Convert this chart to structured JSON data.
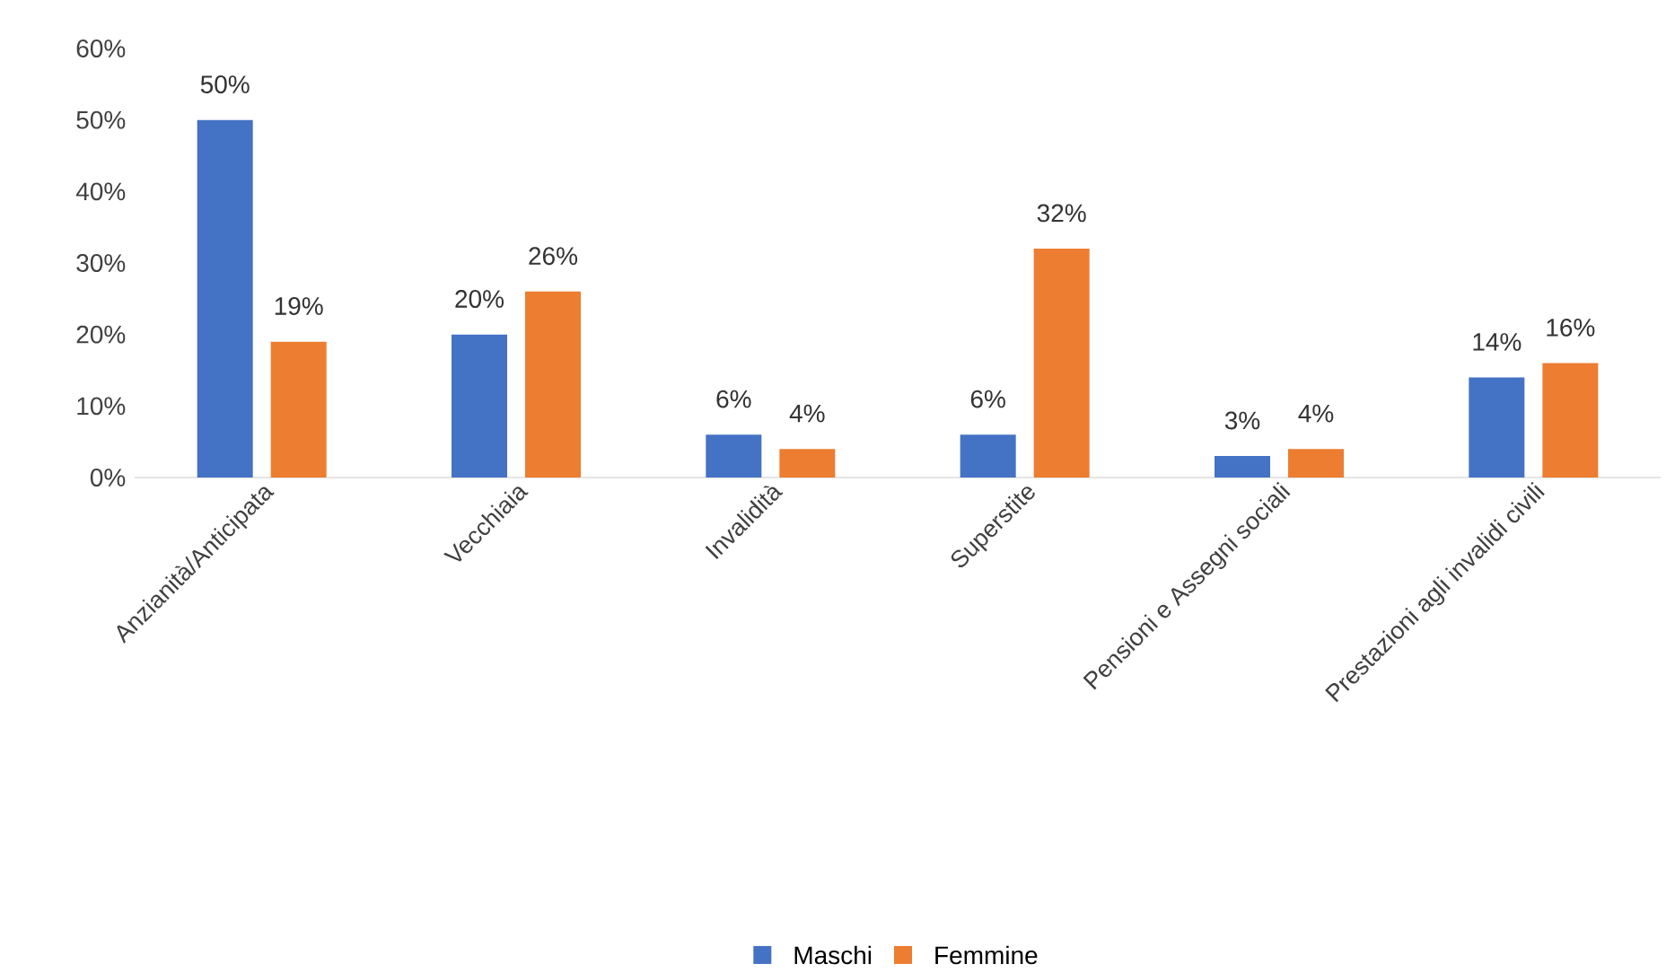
{
  "chart_data": {
    "type": "bar",
    "categories": [
      "Anzianità/Anticipata",
      "Vecchiaia",
      "Invalidità",
      "Superstite",
      "Pensioni e Assegni sociali",
      "Prestazioni agli invalidi civili"
    ],
    "series": [
      {
        "name": "Maschi",
        "color": "#4472c4",
        "values": [
          50,
          20,
          6,
          6,
          3,
          14
        ],
        "value_labels": [
          "50%",
          "20%",
          "6%",
          "6%",
          "3%",
          "14%"
        ]
      },
      {
        "name": "Femmine",
        "color": "#ed7d31",
        "values": [
          19,
          26,
          4,
          32,
          4,
          16
        ],
        "value_labels": [
          "19%",
          "26%",
          "4%",
          "32%",
          "4%",
          "16%"
        ]
      }
    ],
    "ylim": [
      0,
      60
    ],
    "yticks": [
      {
        "value": 0,
        "label": "0%"
      },
      {
        "value": 10,
        "label": "10%"
      },
      {
        "value": 20,
        "label": "20%"
      },
      {
        "value": 30,
        "label": "30%"
      },
      {
        "value": 40,
        "label": "40%"
      },
      {
        "value": 50,
        "label": "50%"
      },
      {
        "value": 60,
        "label": "60%"
      }
    ],
    "legend": "bottom"
  }
}
